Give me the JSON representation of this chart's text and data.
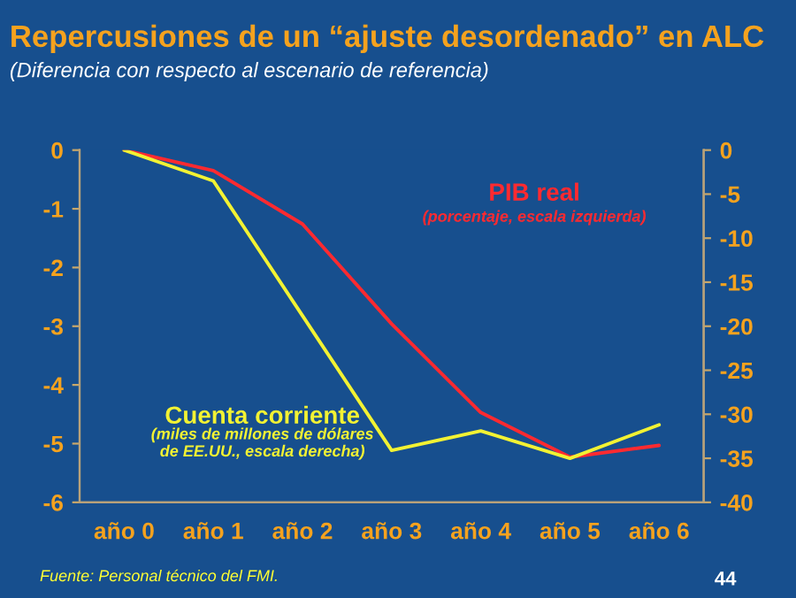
{
  "chart_data": {
    "type": "line",
    "title": "Repercusiones de un “ajuste desordenado” en ALC",
    "subtitle": "(Diferencia con respecto al escenario de referencia)",
    "categories": [
      "año 0",
      "año 1",
      "año 2",
      "año 3",
      "año 4",
      "año 5",
      "año 6"
    ],
    "series": [
      {
        "name": "PIB real",
        "color": "#ff2a30",
        "values": [
          0,
          -0.35,
          -1.26,
          -2.96,
          -4.47,
          -5.23,
          -5.03
        ]
      },
      {
        "name": "Cuenta corriente",
        "color": "#f2f233",
        "axis": "y2",
        "values": [
          0,
          -3.5,
          -18.8,
          -34.1,
          -31.9,
          -35.0,
          -31.2
        ]
      }
    ],
    "ylim": [
      -6,
      0
    ],
    "yticks": [
      -6,
      -5,
      -4,
      -3,
      -2,
      -1,
      0
    ],
    "y2lim": [
      -40,
      0
    ],
    "y2ticks": [
      -40,
      -35,
      -30,
      -25,
      -20,
      -15,
      -10,
      -5,
      0
    ],
    "annotations": [
      "(porcentaje, escala izquierda)",
      "(miles de millones de dólares\nde EE.UU., escala derecha)",
      "Fuente: Personal técnico del FMI.",
      "44"
    ],
    "grid": false,
    "marker": "none",
    "line_style": "solid"
  }
}
